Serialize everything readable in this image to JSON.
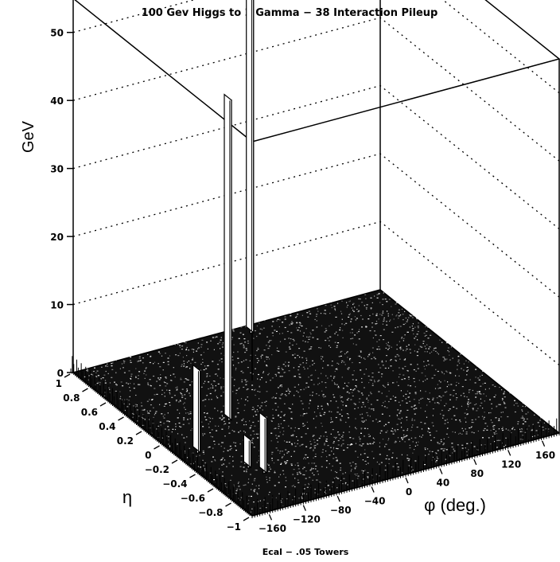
{
  "chart_data": {
    "type": "lego3d",
    "title": "100 Gev Higgs to 2 Gamma − 38 Interaction Pileup",
    "zlabel": "GeV",
    "xlabel": "φ (deg.)",
    "ylabel": "η",
    "footer": "Ecal − .05 Towers",
    "z_ticks": [
      "0",
      "10",
      "20",
      "30",
      "40",
      "50"
    ],
    "z_range": [
      0,
      55
    ],
    "phi_range": [
      -180,
      180
    ],
    "eta_range": [
      -1,
      1
    ],
    "phi_ticks": [
      "−160",
      "−120",
      "−80",
      "−40",
      "0",
      "40",
      "80",
      "120",
      "160"
    ],
    "phi_tick_values": [
      -160,
      -120,
      -80,
      -40,
      0,
      40,
      80,
      120,
      160
    ],
    "eta_ticks": [
      "1",
      "0.8",
      "0.6",
      "0.4",
      "0.2",
      "0",
      "−0.2",
      "−0.4",
      "−0.6",
      "−0.8",
      "−1"
    ],
    "eta_tick_values": [
      1,
      0.8,
      0.6,
      0.4,
      0.2,
      0,
      -0.2,
      -0.4,
      -0.6,
      -0.8,
      -1
    ],
    "grid": true,
    "peaks": [
      {
        "phi": -95,
        "eta": 0.1,
        "energy": 47
      },
      {
        "phi": 20,
        "eta": 0.95,
        "energy": 49
      },
      {
        "phi": -158,
        "eta": -0.15,
        "energy": 12
      },
      {
        "phi": -122,
        "eta": -0.55,
        "energy": 8
      },
      {
        "phi": -130,
        "eta": -0.45,
        "energy": 4
      }
    ],
    "pileup_energy_max": 2
  }
}
